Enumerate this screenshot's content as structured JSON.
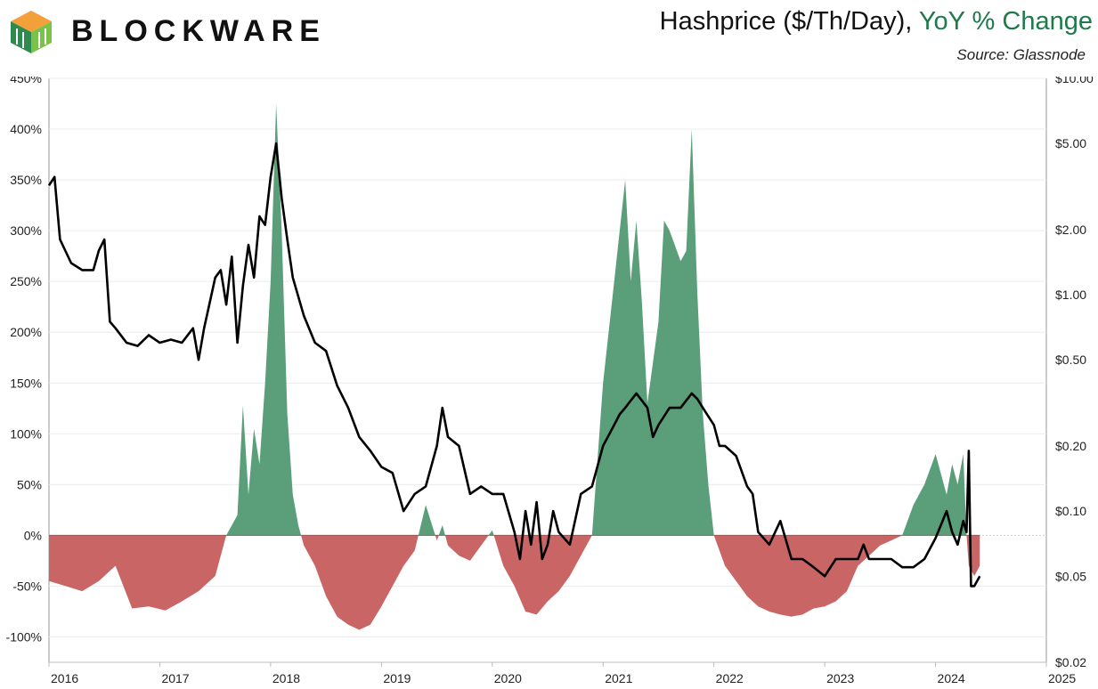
{
  "brand": {
    "name": "BLOCKWARE"
  },
  "title": {
    "main": "Hashprice ($/Th/Day),",
    "accent": "YoY % Change",
    "source": "Source: Glassnode"
  },
  "colors": {
    "positive": "#5b9e7a",
    "negative": "#c96565",
    "line": "#000000",
    "accent": "#1e7a4a"
  },
  "chart_data": {
    "type": "area",
    "y_left": {
      "ticks": [
        "450%",
        "400%",
        "350%",
        "300%",
        "250%",
        "200%",
        "150%",
        "100%",
        "50%",
        "0%",
        "-50%",
        "-100%"
      ],
      "range": [
        -125,
        450
      ]
    },
    "y_right": {
      "scale": "log",
      "ticks": [
        "$10.00",
        "$5.00",
        "$2.00",
        "$1.00",
        "$0.50",
        "$0.20",
        "$0.10",
        "$0.05",
        "$0.02"
      ],
      "tick_values": [
        10,
        5,
        2,
        1,
        0.5,
        0.2,
        0.1,
        0.05,
        0.02
      ],
      "range": [
        0.02,
        10
      ]
    },
    "x_ticks": [
      "2016",
      "2017",
      "2018",
      "2019",
      "2020",
      "2021",
      "2022",
      "2023",
      "2024",
      "2025"
    ],
    "x_range": [
      2016.0,
      2025.0
    ],
    "grid": true,
    "series": [
      {
        "kind": "yoy_percent",
        "x": [
          2016.0,
          2016.15,
          2016.3,
          2016.45,
          2016.6,
          2016.75,
          2016.9,
          2017.05,
          2017.2,
          2017.35,
          2017.5,
          2017.6,
          2017.7,
          2017.75,
          2017.8,
          2017.85,
          2017.9,
          2017.95,
          2018.0,
          2018.05,
          2018.1,
          2018.15,
          2018.2,
          2018.25,
          2018.3,
          2018.4,
          2018.5,
          2018.6,
          2018.7,
          2018.8,
          2018.9,
          2019.0,
          2019.1,
          2019.2,
          2019.3,
          2019.4,
          2019.5,
          2019.55,
          2019.6,
          2019.7,
          2019.8,
          2019.9,
          2020.0,
          2020.1,
          2020.2,
          2020.3,
          2020.4,
          2020.5,
          2020.6,
          2020.7,
          2020.8,
          2020.9,
          2021.0,
          2021.1,
          2021.2,
          2021.25,
          2021.3,
          2021.35,
          2021.4,
          2021.5,
          2021.55,
          2021.6,
          2021.7,
          2021.75,
          2021.8,
          2021.85,
          2021.9,
          2021.95,
          2022.0,
          2022.1,
          2022.2,
          2022.3,
          2022.4,
          2022.5,
          2022.6,
          2022.7,
          2022.8,
          2022.9,
          2023.0,
          2023.1,
          2023.2,
          2023.3,
          2023.4,
          2023.5,
          2023.6,
          2023.7,
          2023.8,
          2023.9,
          2024.0,
          2024.05,
          2024.1,
          2024.15,
          2024.2,
          2024.25,
          2024.28,
          2024.3,
          2024.35,
          2024.4
        ],
        "y": [
          -45,
          -50,
          -55,
          -45,
          -30,
          -72,
          -70,
          -74,
          -65,
          -55,
          -40,
          0,
          20,
          128,
          40,
          105,
          70,
          150,
          250,
          425,
          300,
          120,
          40,
          10,
          -10,
          -30,
          -60,
          -80,
          -88,
          -93,
          -88,
          -70,
          -50,
          -30,
          -15,
          30,
          -5,
          10,
          -10,
          -20,
          -25,
          -10,
          5,
          -30,
          -50,
          -75,
          -78,
          -65,
          -55,
          -40,
          -20,
          0,
          150,
          250,
          350,
          250,
          310,
          230,
          130,
          210,
          310,
          300,
          270,
          280,
          400,
          240,
          120,
          50,
          0,
          -30,
          -45,
          -60,
          -70,
          -75,
          -78,
          -80,
          -78,
          -72,
          -70,
          -65,
          -55,
          -30,
          -20,
          -10,
          -5,
          0,
          30,
          50,
          80,
          60,
          40,
          70,
          50,
          80,
          0,
          -30,
          -40,
          -30
        ]
      },
      {
        "kind": "hashprice_usd",
        "x": [
          2016.0,
          2016.05,
          2016.1,
          2016.2,
          2016.3,
          2016.4,
          2016.45,
          2016.5,
          2016.55,
          2016.6,
          2016.7,
          2016.8,
          2016.9,
          2017.0,
          2017.1,
          2017.2,
          2017.3,
          2017.35,
          2017.4,
          2017.5,
          2017.55,
          2017.6,
          2017.65,
          2017.7,
          2017.75,
          2017.8,
          2017.85,
          2017.9,
          2017.95,
          2018.0,
          2018.05,
          2018.1,
          2018.15,
          2018.2,
          2018.3,
          2018.4,
          2018.5,
          2018.6,
          2018.7,
          2018.8,
          2018.9,
          2019.0,
          2019.1,
          2019.2,
          2019.3,
          2019.4,
          2019.5,
          2019.55,
          2019.6,
          2019.7,
          2019.8,
          2019.9,
          2020.0,
          2020.1,
          2020.2,
          2020.25,
          2020.3,
          2020.35,
          2020.4,
          2020.45,
          2020.5,
          2020.55,
          2020.6,
          2020.7,
          2020.8,
          2020.9,
          2021.0,
          2021.1,
          2021.15,
          2021.2,
          2021.3,
          2021.4,
          2021.45,
          2021.5,
          2021.6,
          2021.7,
          2021.8,
          2021.85,
          2021.9,
          2022.0,
          2022.05,
          2022.1,
          2022.2,
          2022.3,
          2022.35,
          2022.4,
          2022.5,
          2022.6,
          2022.7,
          2022.8,
          2022.9,
          2023.0,
          2023.1,
          2023.2,
          2023.3,
          2023.35,
          2023.4,
          2023.5,
          2023.6,
          2023.7,
          2023.8,
          2023.9,
          2024.0,
          2024.1,
          2024.15,
          2024.2,
          2024.25,
          2024.28,
          2024.3,
          2024.32,
          2024.35,
          2024.4
        ],
        "y": [
          3.2,
          3.5,
          1.8,
          1.4,
          1.3,
          1.3,
          1.6,
          1.8,
          0.75,
          0.7,
          0.6,
          0.58,
          0.65,
          0.6,
          0.62,
          0.6,
          0.7,
          0.5,
          0.7,
          1.2,
          1.3,
          0.9,
          1.5,
          0.6,
          1.1,
          1.7,
          1.2,
          2.3,
          2.1,
          3.5,
          5.0,
          2.8,
          1.8,
          1.2,
          0.8,
          0.6,
          0.55,
          0.38,
          0.3,
          0.22,
          0.19,
          0.16,
          0.15,
          0.1,
          0.12,
          0.13,
          0.2,
          0.3,
          0.22,
          0.2,
          0.12,
          0.13,
          0.12,
          0.12,
          0.08,
          0.06,
          0.1,
          0.07,
          0.11,
          0.06,
          0.07,
          0.1,
          0.08,
          0.07,
          0.12,
          0.13,
          0.2,
          0.25,
          0.28,
          0.3,
          0.35,
          0.3,
          0.22,
          0.25,
          0.3,
          0.3,
          0.35,
          0.33,
          0.3,
          0.25,
          0.2,
          0.2,
          0.18,
          0.13,
          0.12,
          0.08,
          0.07,
          0.09,
          0.06,
          0.06,
          0.055,
          0.05,
          0.06,
          0.06,
          0.06,
          0.07,
          0.06,
          0.06,
          0.06,
          0.055,
          0.055,
          0.06,
          0.075,
          0.1,
          0.08,
          0.07,
          0.09,
          0.08,
          0.19,
          0.045,
          0.045,
          0.05
        ]
      }
    ]
  }
}
